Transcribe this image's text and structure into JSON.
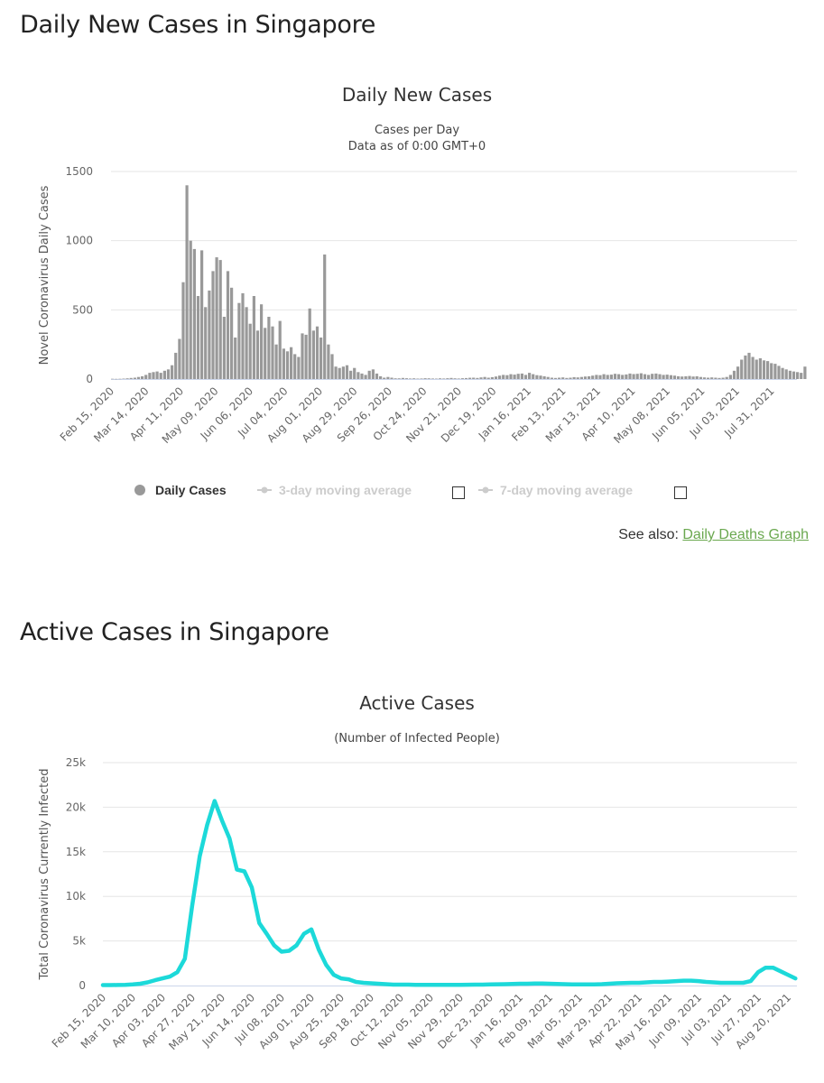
{
  "sections": {
    "daily": {
      "heading": "Daily New Cases in Singapore"
    },
    "active": {
      "heading": "Active Cases in Singapore"
    }
  },
  "see_also": {
    "label": "See also:",
    "link": "Daily Deaths Graph"
  },
  "colors": {
    "bars": "#999999",
    "line": "#1cd9d9",
    "link": "#6aa84f",
    "grid": "#e6e6e6"
  },
  "chart_data": [
    {
      "type": "bar",
      "title": "Daily New Cases",
      "subtitle": [
        "Cases per Day",
        "Data as of 0:00 GMT+0"
      ],
      "ylabel": "Novel Coronavirus Daily Cases",
      "ylim": [
        0,
        1500
      ],
      "yticks": [
        "0",
        "500",
        "1000",
        "1500"
      ],
      "xticks": [
        "Feb 15, 2020",
        "Mar 14, 2020",
        "Apr 11, 2020",
        "May 09, 2020",
        "Jun 06, 2020",
        "Jul 04, 2020",
        "Aug 01, 2020",
        "Aug 29, 2020",
        "Sep 26, 2020",
        "Oct 24, 2020",
        "Nov 21, 2020",
        "Dec 19, 2020",
        "Jan 16, 2021",
        "Feb 13, 2021",
        "Mar 13, 2021",
        "Apr 10, 2021",
        "May 08, 2021",
        "Jun 05, 2021",
        "Jul 03, 2021",
        "Jul 31, 2021"
      ],
      "x_start": "2020-02-15",
      "x_interval_days": 3,
      "grid": true,
      "legend": {
        "position": "bottom",
        "items": [
          {
            "label": "Daily Cases",
            "active": true
          },
          {
            "label": "3-day moving average",
            "active": false
          },
          {
            "label": "7-day moving average",
            "active": false
          }
        ]
      },
      "series": [
        {
          "name": "Daily Cases",
          "values": [
            2,
            1,
            2,
            3,
            5,
            8,
            10,
            15,
            20,
            30,
            45,
            50,
            55,
            45,
            60,
            70,
            100,
            190,
            290,
            700,
            1400,
            1000,
            940,
            600,
            930,
            520,
            640,
            780,
            880,
            860,
            450,
            780,
            660,
            300,
            550,
            620,
            520,
            400,
            600,
            350,
            540,
            370,
            450,
            380,
            250,
            420,
            220,
            200,
            230,
            180,
            160,
            330,
            320,
            510,
            350,
            380,
            300,
            900,
            250,
            180,
            90,
            80,
            90,
            100,
            60,
            80,
            50,
            40,
            30,
            60,
            70,
            40,
            20,
            10,
            15,
            10,
            5,
            5,
            8,
            6,
            4,
            5,
            3,
            4,
            6,
            5,
            4,
            3,
            5,
            4,
            6,
            8,
            5,
            4,
            6,
            7,
            9,
            10,
            8,
            12,
            15,
            10,
            14,
            18,
            25,
            30,
            28,
            35,
            32,
            38,
            40,
            30,
            45,
            35,
            28,
            25,
            20,
            15,
            10,
            8,
            10,
            12,
            8,
            10,
            14,
            12,
            15,
            18,
            20,
            25,
            30,
            28,
            35,
            30,
            32,
            38,
            35,
            30,
            33,
            40,
            36,
            38,
            42,
            35,
            30,
            38,
            40,
            35,
            30,
            32,
            28,
            25,
            20,
            18,
            20,
            22,
            18,
            20,
            15,
            12,
            10,
            12,
            10,
            8,
            10,
            15,
            30,
            60,
            90,
            140,
            170,
            190,
            160,
            140,
            150,
            135,
            130,
            115,
            110,
            95,
            80,
            70,
            60,
            55,
            50,
            45,
            90
          ]
        }
      ]
    },
    {
      "type": "line",
      "title": "Active Cases",
      "subtitle": [
        "(Number of Infected People)"
      ],
      "ylabel": "Total Coronavirus Currently Infected",
      "ylim": [
        0,
        25000
      ],
      "yticks": [
        "0",
        "5k",
        "10k",
        "15k",
        "20k",
        "25k"
      ],
      "xticks": [
        "Feb 15, 2020",
        "Mar 10, 2020",
        "Apr 03, 2020",
        "Apr 27, 2020",
        "May 21, 2020",
        "Jun 14, 2020",
        "Jul 08, 2020",
        "Aug 01, 2020",
        "Aug 25, 2020",
        "Sep 18, 2020",
        "Oct 12, 2020",
        "Nov 05, 2020",
        "Nov 29, 2020",
        "Dec 23, 2020",
        "Jan 16, 2021",
        "Feb 09, 2021",
        "Mar 05, 2021",
        "Mar 29, 2021",
        "Apr 22, 2021",
        "May 16, 2021",
        "Jun 09, 2021",
        "Jul 03, 2021",
        "Jul 27, 2021",
        "Aug 20, 2021"
      ],
      "x_start": "2020-02-15",
      "x_interval_days": 6,
      "grid": true,
      "series": [
        {
          "values": [
            50,
            50,
            60,
            80,
            120,
            200,
            350,
            600,
            800,
            1000,
            1500,
            3000,
            9000,
            14500,
            18000,
            20700,
            18500,
            16500,
            13000,
            12800,
            11000,
            7000,
            5800,
            4500,
            3800,
            3900,
            4500,
            5800,
            6300,
            4000,
            2300,
            1200,
            800,
            700,
            400,
            300,
            250,
            200,
            150,
            100,
            100,
            100,
            80,
            80,
            70,
            70,
            70,
            80,
            80,
            90,
            100,
            100,
            120,
            140,
            150,
            170,
            200,
            200,
            220,
            220,
            200,
            180,
            150,
            130,
            120,
            120,
            130,
            150,
            200,
            250,
            280,
            300,
            300,
            350,
            400,
            400,
            450,
            500,
            550,
            550,
            500,
            400,
            350,
            300,
            300,
            300,
            300,
            500,
            1500,
            2000,
            2000,
            1600,
            1200,
            800
          ]
        }
      ]
    }
  ]
}
